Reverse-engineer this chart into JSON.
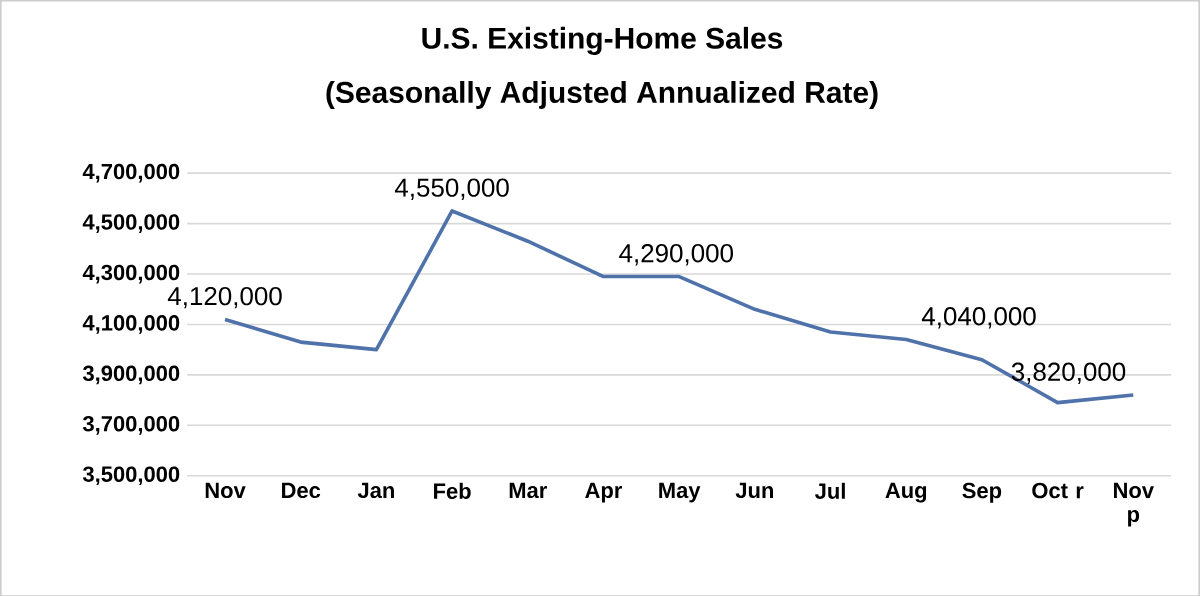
{
  "chart_data": {
    "type": "line",
    "title": "U.S. Existing-Home Sales",
    "subtitle": "(Seasonally Adjusted Annualized  Rate)",
    "categories": [
      "Nov",
      "Dec",
      "Jan",
      "Feb",
      "Mar",
      "Apr",
      "May",
      "Jun",
      "Jul",
      "Aug",
      "Sep",
      "Oct r",
      "Nov p"
    ],
    "series": [
      {
        "color": "#4f72aa",
        "values": [
          4120000,
          4030000,
          4000000,
          4550000,
          4430000,
          4290000,
          4290000,
          4160000,
          4070000,
          4040000,
          3960000,
          3790000,
          3820000
        ],
        "value_labels": [
          "4,120,000",
          null,
          null,
          "4,550,000",
          null,
          "4,290,000",
          null,
          null,
          null,
          "4,040,000",
          null,
          null,
          "3,820,000"
        ]
      }
    ],
    "ylim": [
      3500000,
      4700000
    ],
    "yticks": [
      {
        "value": 3500000,
        "label": "3,500,000"
      },
      {
        "value": 3700000,
        "label": "3,700,000"
      },
      {
        "value": 3900000,
        "label": "3,900,000"
      },
      {
        "value": 4100000,
        "label": "4,100,000"
      },
      {
        "value": 4300000,
        "label": "4,300,000"
      },
      {
        "value": 4500000,
        "label": "4,500,000"
      },
      {
        "value": 4700000,
        "label": "4,700,000"
      }
    ],
    "grid": "y",
    "marker": "none",
    "line_style": "solid"
  }
}
